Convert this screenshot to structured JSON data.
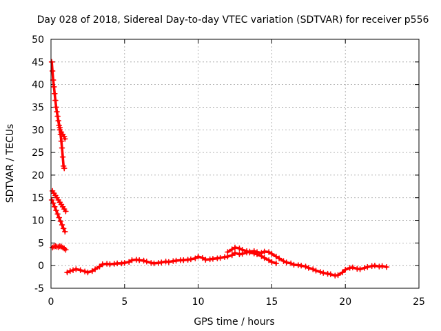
{
  "chart_data": {
    "type": "scatter",
    "title": "Day 028 of 2018, Sidereal Day-to-day VTEC variation (SDTVAR) for receiver p556",
    "xlabel": "GPS time / hours",
    "ylabel": "SDTVAR / TECUs",
    "xlim": [
      0,
      25
    ],
    "ylim": [
      -5,
      50
    ],
    "xticks": [
      "0",
      "5",
      "10",
      "15",
      "20",
      "25"
    ],
    "yticks": [
      "-5",
      "0",
      "5",
      "10",
      "15",
      "20",
      "25",
      "30",
      "35",
      "40",
      "45",
      "50"
    ],
    "grid": true,
    "marker": "+",
    "color": "#ff0000",
    "series": [
      {
        "name": "steep-high-branch",
        "x": [
          0.05,
          0.1,
          0.15,
          0.2,
          0.25,
          0.3,
          0.35,
          0.4,
          0.45,
          0.5,
          0.55,
          0.6,
          0.65,
          0.7,
          0.75,
          0.8,
          0.85,
          0.9
        ],
        "y": [
          45,
          43,
          41,
          39.5,
          38,
          36.5,
          35,
          34,
          33,
          32,
          31,
          30,
          29,
          27.5,
          26,
          24,
          22,
          21.5
        ]
      },
      {
        "name": "upper-side-branch",
        "x": [
          0.5,
          0.6,
          0.7,
          0.8,
          0.9,
          0.95
        ],
        "y": [
          32,
          30.5,
          29.5,
          29,
          28.5,
          28
        ]
      },
      {
        "name": "mid-branch-a",
        "x": [
          0.1,
          0.2,
          0.3,
          0.4,
          0.5,
          0.6,
          0.7,
          0.8,
          0.9,
          1.0
        ],
        "y": [
          16.5,
          16,
          15.5,
          15,
          14.5,
          14,
          13.5,
          13,
          12.5,
          12
        ]
      },
      {
        "name": "mid-branch-b",
        "x": [
          0.05,
          0.15,
          0.25,
          0.35,
          0.45,
          0.55,
          0.65,
          0.75,
          0.85,
          0.95
        ],
        "y": [
          14.5,
          13.8,
          13,
          12.2,
          11.4,
          10.6,
          9.8,
          9,
          8.2,
          7.5
        ]
      },
      {
        "name": "low-early",
        "x": [
          0.1,
          0.2,
          0.3,
          0.4,
          0.5,
          0.6,
          0.7,
          0.8,
          0.9,
          1.0
        ],
        "y": [
          4,
          4.2,
          4.3,
          4.2,
          4.1,
          4.3,
          4.2,
          4.0,
          3.8,
          3.5
        ]
      },
      {
        "name": "main-track",
        "x": [
          1.1,
          1.3,
          1.5,
          1.7,
          2.0,
          2.3,
          2.5,
          2.8,
          3.0,
          3.3,
          3.5,
          3.8,
          4.0,
          4.3,
          4.5,
          4.8,
          5.0,
          5.3,
          5.5,
          5.8,
          6.0,
          6.3,
          6.5,
          6.8,
          7.0,
          7.3,
          7.5,
          7.8,
          8.0,
          8.3,
          8.5,
          8.8,
          9.0,
          9.3,
          9.5,
          9.8,
          10.0,
          10.3,
          10.5,
          10.8,
          11.0,
          11.3,
          11.5,
          11.8,
          12.0,
          12.3,
          12.5,
          12.8,
          13.0,
          13.3,
          13.5,
          13.8,
          14.0,
          14.3,
          14.5,
          14.8,
          15.0,
          15.3,
          15.5,
          15.8,
          16.0,
          16.3,
          16.5,
          16.8,
          17.0,
          17.3,
          17.5,
          17.8,
          18.0,
          18.3,
          18.5,
          18.8,
          19.0,
          19.3,
          19.5,
          19.8,
          20.0,
          20.3,
          20.5,
          20.8,
          21.0,
          21.3,
          21.5,
          21.8,
          22.0,
          22.3,
          22.5,
          22.8
        ],
        "y": [
          -1.5,
          -1.2,
          -1.0,
          -0.8,
          -1.0,
          -1.3,
          -1.5,
          -1.2,
          -0.8,
          -0.2,
          0.3,
          0.4,
          0.3,
          0.4,
          0.5,
          0.5,
          0.6,
          0.8,
          1.2,
          1.3,
          1.2,
          1.1,
          0.9,
          0.6,
          0.5,
          0.6,
          0.7,
          0.9,
          0.8,
          1.0,
          1.1,
          1.2,
          1.2,
          1.3,
          1.4,
          1.6,
          2.0,
          1.7,
          1.3,
          1.4,
          1.5,
          1.6,
          1.7,
          1.9,
          2.0,
          2.3,
          2.8,
          2.5,
          2.6,
          2.9,
          3.1,
          3.2,
          3.0,
          2.8,
          3.1,
          3.0,
          2.6,
          2.0,
          1.6,
          1.0,
          0.7,
          0.5,
          0.2,
          0.1,
          0.0,
          -0.2,
          -0.5,
          -0.8,
          -1.1,
          -1.4,
          -1.6,
          -1.8,
          -1.9,
          -2.2,
          -2.1,
          -1.5,
          -0.9,
          -0.5,
          -0.4,
          -0.7,
          -0.8,
          -0.5,
          -0.3,
          -0.1,
          0.0,
          -0.2,
          -0.1,
          -0.3
        ]
      },
      {
        "name": "noon-secondary",
        "x": [
          12.0,
          12.3,
          12.5,
          12.8,
          13.0,
          13.3,
          13.5,
          13.8,
          14.0,
          14.3,
          14.5,
          14.8,
          15.0,
          15.3
        ],
        "y": [
          3.0,
          3.6,
          4.0,
          3.8,
          3.5,
          3.2,
          2.9,
          2.7,
          2.5,
          2.1,
          1.7,
          1.2,
          0.8,
          0.5
        ]
      }
    ]
  }
}
